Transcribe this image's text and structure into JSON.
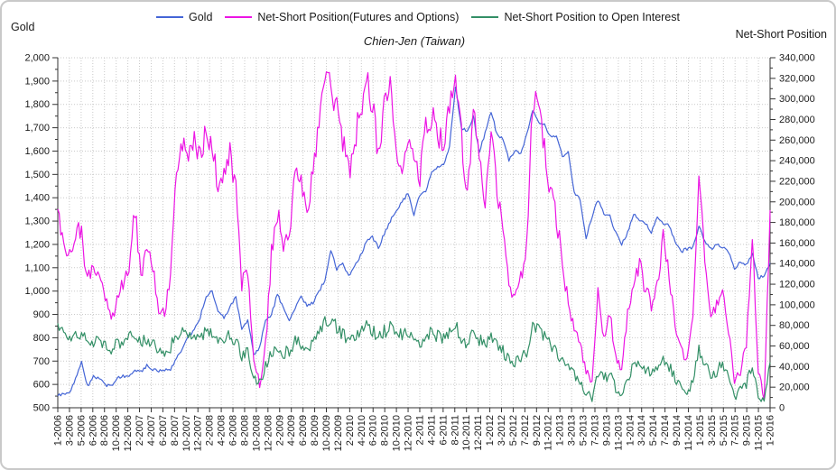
{
  "chart_data": {
    "type": "line",
    "title": "Chien-Jen (Taiwan)",
    "grid": true,
    "legend_position": "top-center",
    "cadence": "monthly points from 1-2006 to 1-2016",
    "left_axis": {
      "title": "Gold",
      "min": 500,
      "max": 2000,
      "step": 100,
      "tick_labels": [
        "2,000",
        "1,900",
        "1,800",
        "1,700",
        "1,600",
        "1,500",
        "1,400",
        "1,300",
        "1,200",
        "1,100",
        "1,000",
        "900",
        "800",
        "700",
        "600",
        "500"
      ]
    },
    "right_axis": {
      "title": "Net-Short Position",
      "min": 0,
      "max": 340000,
      "step": 20000,
      "tick_labels": [
        "340,000",
        "320,000",
        "300,000",
        "280,000",
        "260,000",
        "240,000",
        "220,000",
        "200,000",
        "180,000",
        "160,000",
        "140,000",
        "120,000",
        "100,000",
        "80,000",
        "60,000",
        "40,000",
        "20,000",
        "0"
      ]
    },
    "x_tick_labels": [
      "1-2006",
      "3-2006",
      "5-2006",
      "6-2006",
      "8-2006",
      "10-2006",
      "12-2006",
      "2-2007",
      "4-2007",
      "6-2007",
      "8-2007",
      "10-2007",
      "12-2007",
      "2-2008",
      "4-2008",
      "6-2008",
      "8-2008",
      "10-2008",
      "12-2008",
      "2-2009",
      "4-2009",
      "6-2009",
      "8-2009",
      "10-2009",
      "12-2009",
      "2-2010",
      "4-2010",
      "6-2010",
      "8-2010",
      "10-2010",
      "12-2010",
      "2-2011",
      "4-2011",
      "6-2011",
      "8-2011",
      "10-2011",
      "12-2011",
      "1-2012",
      "3-2012",
      "5-2012",
      "7-2012",
      "9-2012",
      "11-2012",
      "1-2013",
      "3-2013",
      "5-2013",
      "7-2013",
      "9-2013",
      "11-2013",
      "1-2014",
      "3-2014",
      "5-2014",
      "7-2014",
      "9-2014",
      "11-2014",
      "1-2015",
      "3-2015",
      "5-2015",
      "7-2015",
      "9-2015",
      "11-2015",
      "1-2016"
    ],
    "colors": {
      "gold": "#4465d6",
      "net_short": "#ec15e4",
      "ratio": "#338f66",
      "gridline": "#c9c9c9",
      "axis": "#333333"
    },
    "series": [
      {
        "name": "Gold",
        "axis": "left",
        "color": "#4465d6",
        "values": [
          550,
          560,
          565,
          625,
          700,
          590,
          635,
          625,
          600,
          590,
          630,
          635,
          640,
          665,
          655,
          680,
          665,
          655,
          665,
          665,
          715,
          755,
          805,
          835,
          890,
          975,
          1005,
          910,
          885,
          930,
          975,
          835,
          880,
          725,
          760,
          870,
          895,
          990,
          925,
          875,
          930,
          980,
          935,
          950,
          1000,
          1045,
          1175,
          1095,
          1120,
          1065,
          1110,
          1150,
          1210,
          1230,
          1185,
          1245,
          1300,
          1345,
          1380,
          1420,
          1330,
          1410,
          1430,
          1510,
          1530,
          1540,
          1620,
          1880,
          1700,
          1680,
          1750,
          1590,
          1680,
          1770,
          1670,
          1650,
          1560,
          1600,
          1590,
          1670,
          1775,
          1720,
          1715,
          1660,
          1670,
          1580,
          1595,
          1420,
          1390,
          1230,
          1320,
          1390,
          1330,
          1320,
          1250,
          1200,
          1250,
          1330,
          1300,
          1290,
          1250,
          1320,
          1290,
          1280,
          1215,
          1170,
          1180,
          1190,
          1280,
          1210,
          1180,
          1200,
          1190,
          1170,
          1090,
          1130,
          1110,
          1160,
          1060,
          1060,
          1120
        ]
      },
      {
        "name": "Net-Short Position(Futures and Options)",
        "axis": "right",
        "color": "#ec15e4",
        "values": [
          193000,
          162000,
          152000,
          172000,
          168000,
          122000,
          138000,
          128000,
          105000,
          82000,
          110000,
          122000,
          138000,
          192000,
          130000,
          152000,
          140000,
          95000,
          90000,
          130000,
          230000,
          262000,
          240000,
          258000,
          240000,
          268000,
          255000,
          215000,
          235000,
          250000,
          210000,
          120000,
          135000,
          50000,
          22000,
          60000,
          150000,
          190000,
          160000,
          170000,
          235000,
          215000,
          195000,
          225000,
          285000,
          322000,
          318000,
          288000,
          262000,
          228000,
          258000,
          292000,
          318000,
          298000,
          245000,
          298000,
          310000,
          240000,
          225000,
          260000,
          235000,
          225000,
          270000,
          285000,
          265000,
          255000,
          300000,
          330000,
          265000,
          205000,
          290000,
          240000,
          195000,
          280000,
          210000,
          170000,
          120000,
          110000,
          125000,
          160000,
          300000,
          295000,
          250000,
          210000,
          185000,
          140000,
          100000,
          80000,
          60000,
          38000,
          25000,
          110000,
          70000,
          90000,
          50000,
          40000,
          90000,
          125000,
          140000,
          115000,
          100000,
          120000,
          168000,
          125000,
          80000,
          55000,
          50000,
          95000,
          228000,
          150000,
          82000,
          100000,
          122000,
          75000,
          25000,
          35000,
          60000,
          172000,
          35000,
          12000,
          192000
        ]
      },
      {
        "name": "Net-Short Position to Open Interest",
        "axis": "right",
        "color": "#338f66",
        "values": [
          82000,
          74000,
          68000,
          70000,
          71000,
          62000,
          65000,
          63000,
          61000,
          58000,
          63000,
          65000,
          69000,
          73000,
          64000,
          66000,
          62000,
          57000,
          55000,
          59000,
          71000,
          74000,
          71000,
          73000,
          70000,
          73000,
          71000,
          65000,
          67000,
          69000,
          64000,
          50000,
          54000,
          30000,
          24000,
          40000,
          54000,
          58000,
          53000,
          55000,
          64000,
          62000,
          59000,
          64000,
          74000,
          86000,
          83000,
          78000,
          72000,
          67000,
          70000,
          76000,
          79000,
          76000,
          68000,
          74000,
          78000,
          73000,
          70000,
          74000,
          67000,
          63000,
          70000,
          73000,
          70000,
          68000,
          73000,
          79000,
          69000,
          61000,
          73000,
          66000,
          60000,
          69000,
          62000,
          55000,
          47000,
          45000,
          49000,
          54000,
          77000,
          79000,
          69000,
          61000,
          55000,
          45000,
          38000,
          33000,
          26000,
          15000,
          9000,
          34000,
          28000,
          32000,
          19000,
          15000,
          29000,
          41000,
          45000,
          38000,
          35000,
          38000,
          48000,
          40000,
          29000,
          19000,
          15000,
          25000,
          58000,
          44000,
          29000,
          35000,
          43000,
          29000,
          11000,
          17000,
          23000,
          40000,
          13000,
          7000,
          44000
        ]
      }
    ]
  }
}
